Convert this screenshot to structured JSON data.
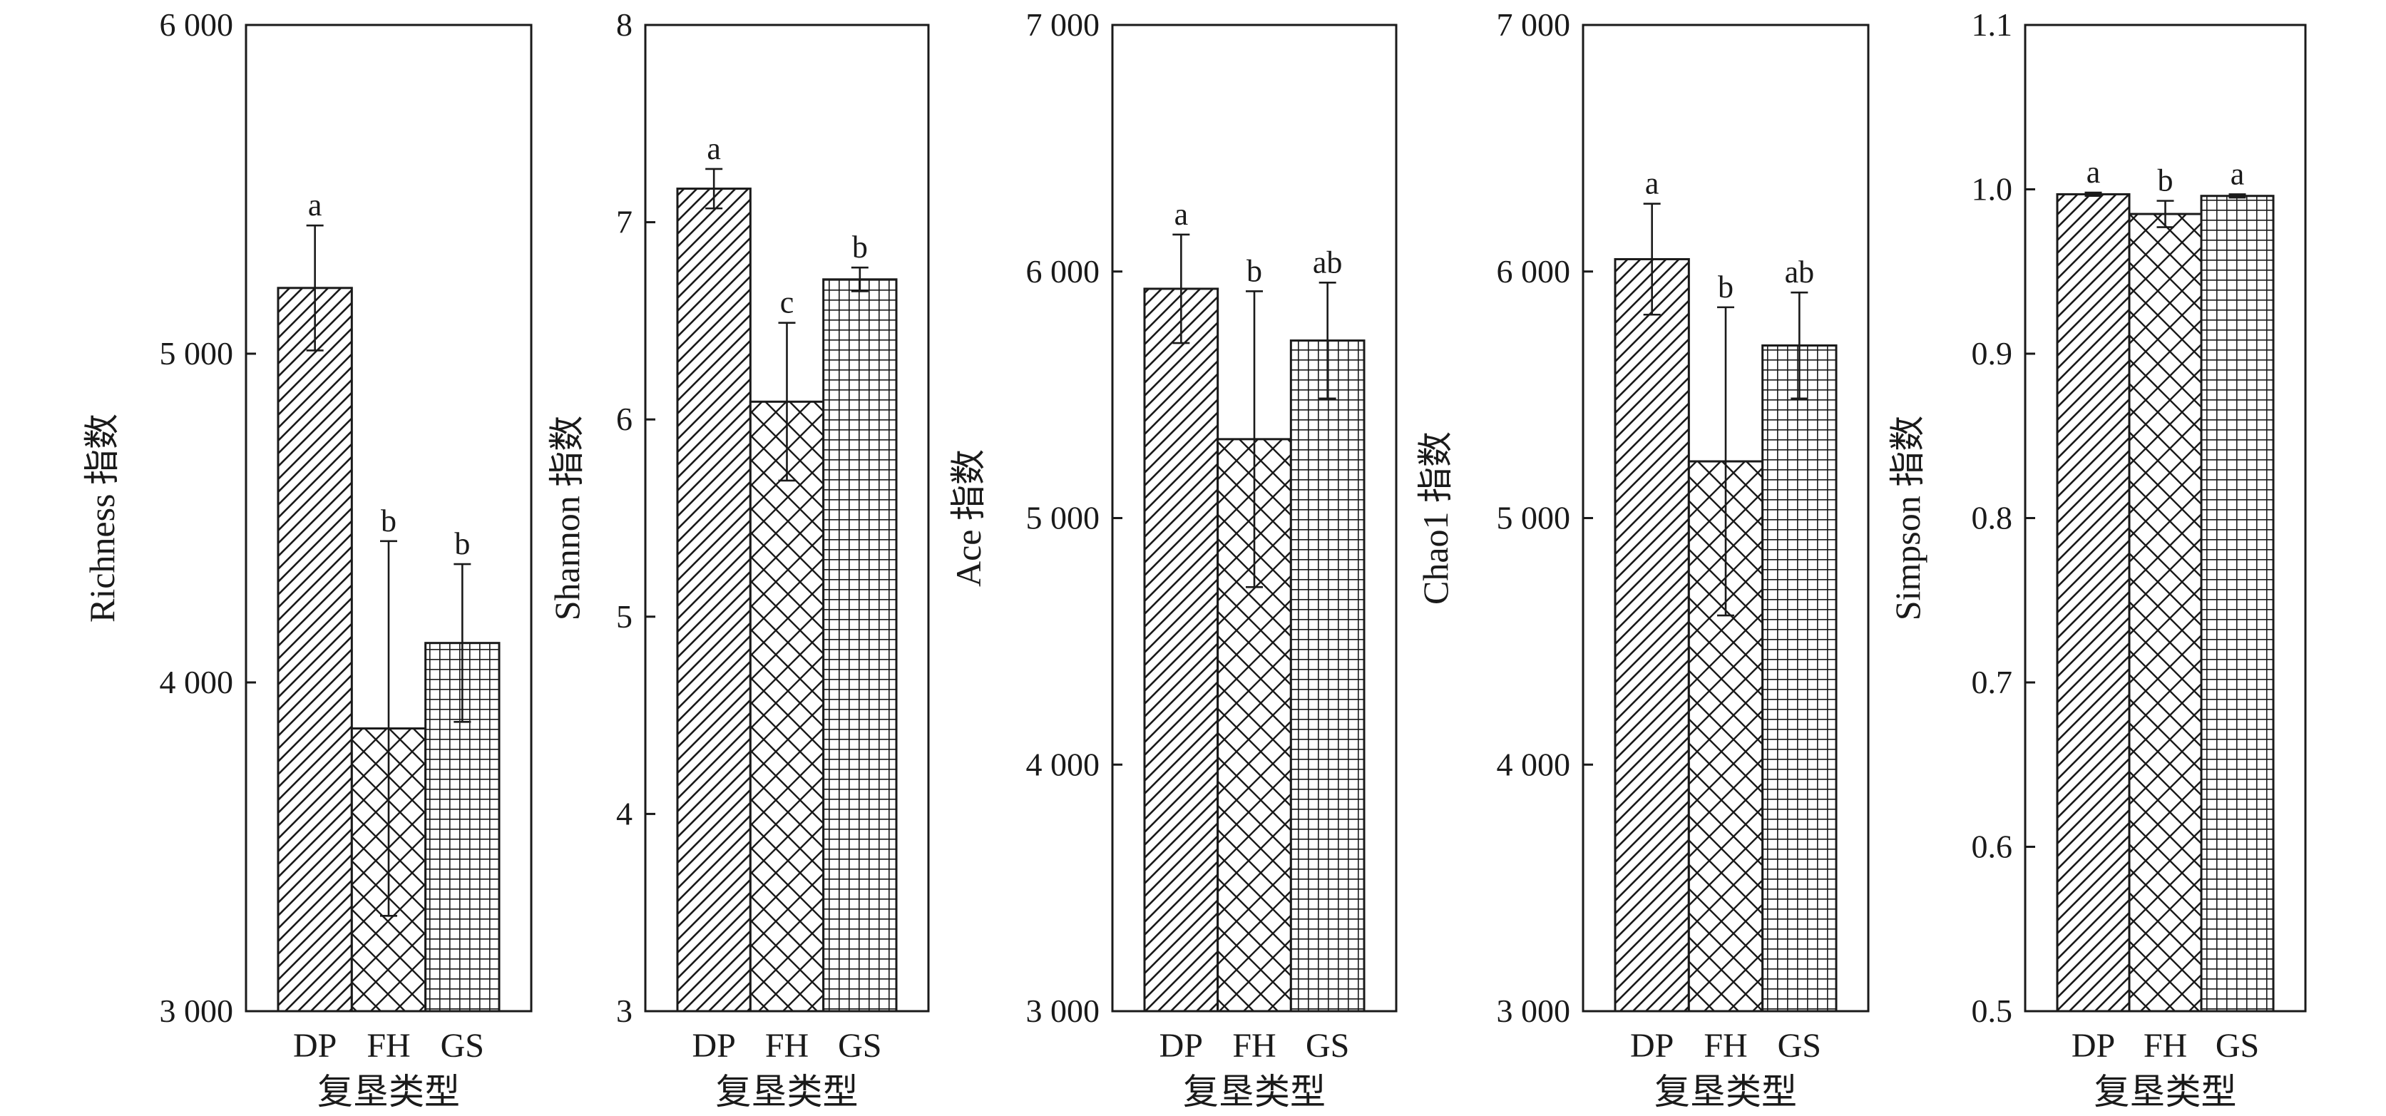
{
  "chart_data": [
    {
      "type": "bar",
      "categories": [
        "DP",
        "FH",
        "GS"
      ],
      "values": [
        5200,
        3860,
        4120
      ],
      "errors": [
        190,
        570,
        240
      ],
      "letters": [
        "a",
        "b",
        "b"
      ],
      "ylabel": "Richness 指数",
      "xlabel": "复垦类型",
      "ylim": [
        3000,
        6000
      ],
      "yticks": [
        3000,
        4000,
        5000,
        6000
      ],
      "ytick_labels": [
        "3 000",
        "4 000",
        "5 000",
        "6 000"
      ]
    },
    {
      "type": "bar",
      "categories": [
        "DP",
        "FH",
        "GS"
      ],
      "values": [
        7.17,
        6.09,
        6.71
      ],
      "errors": [
        0.1,
        0.4,
        0.06
      ],
      "letters": [
        "a",
        "c",
        "b"
      ],
      "ylabel": "Shannon 指数",
      "xlabel": "复垦类型",
      "ylim": [
        3,
        8
      ],
      "yticks": [
        3,
        4,
        5,
        6,
        7,
        8
      ],
      "ytick_labels": [
        "3",
        "4",
        "5",
        "6",
        "7",
        "8"
      ]
    },
    {
      "type": "bar",
      "categories": [
        "DP",
        "FH",
        "GS"
      ],
      "values": [
        5930,
        5320,
        5720
      ],
      "errors": [
        220,
        600,
        235
      ],
      "letters": [
        "a",
        "b",
        "ab"
      ],
      "ylabel": "Ace 指数",
      "xlabel": "复垦类型",
      "ylim": [
        3000,
        7000
      ],
      "yticks": [
        3000,
        4000,
        5000,
        6000,
        7000
      ],
      "ytick_labels": [
        "3 000",
        "4 000",
        "5 000",
        "6 000",
        "7 000"
      ]
    },
    {
      "type": "bar",
      "categories": [
        "DP",
        "FH",
        "GS"
      ],
      "values": [
        6050,
        5230,
        5700
      ],
      "errors": [
        225,
        625,
        215
      ],
      "letters": [
        "a",
        "b",
        "ab"
      ],
      "ylabel": "Chao1 指数",
      "xlabel": "复垦类型",
      "ylim": [
        3000,
        7000
      ],
      "yticks": [
        3000,
        4000,
        5000,
        6000,
        7000
      ],
      "ytick_labels": [
        "3 000",
        "4 000",
        "5 000",
        "6 000",
        "7 000"
      ]
    },
    {
      "type": "bar",
      "categories": [
        "DP",
        "FH",
        "GS"
      ],
      "values": [
        0.997,
        0.985,
        0.996
      ],
      "errors": [
        0.001,
        0.008,
        0.001
      ],
      "letters": [
        "a",
        "b",
        "a"
      ],
      "ylabel": "Simpson 指数",
      "xlabel": "复垦类型",
      "ylim": [
        0.5,
        1.1
      ],
      "yticks": [
        0.5,
        0.6,
        0.7,
        0.8,
        0.9,
        1.0,
        1.1
      ],
      "ytick_labels": [
        "0.5",
        "0.6",
        "0.7",
        "0.8",
        "0.9",
        "1.0",
        "1.1"
      ]
    }
  ],
  "style": {
    "ink_color": "#1a1a1a",
    "background_color": "#ffffff",
    "bar_patterns": [
      "diagonal-hatch",
      "cross-hatch",
      "grid-hatch"
    ],
    "grid": false,
    "legend": "none"
  }
}
